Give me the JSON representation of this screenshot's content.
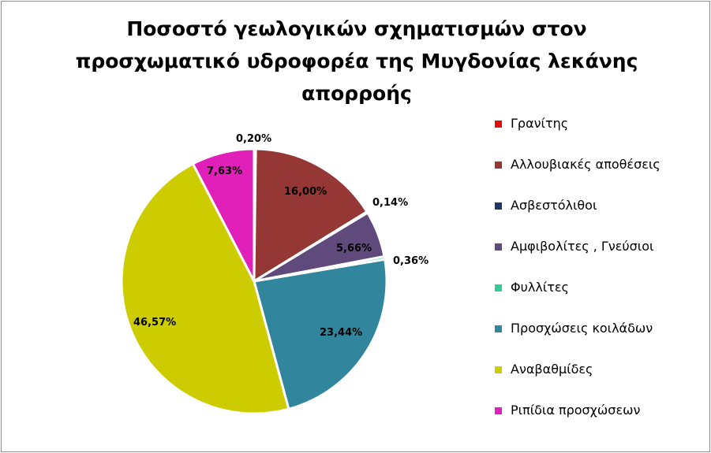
{
  "chart_data": {
    "type": "pie",
    "title": "Ποσοστό γεωλογικών σχηματισμών στον προσχωματικό υδροφορέα της Μυγδονίας λεκάνης απορροής",
    "title_lines": [
      "Ποσοστό γεωλογικών σχηματισμών στον",
      "προσχωματικό υδροφορέα της Μυγδονίας λεκάνης",
      "απορροής"
    ],
    "legend_position": "right",
    "slices": [
      {
        "name": "Γρανίτης",
        "value": 0.2,
        "label": "0,20%",
        "color": "#e01010"
      },
      {
        "name": "Αλλουβιακές αποθέσεις",
        "value": 16.0,
        "label": "16,00%",
        "color": "#953735"
      },
      {
        "name": "Ασβεστόλιθοι",
        "value": 0.14,
        "label": "0,14%",
        "color": "#1f3864"
      },
      {
        "name": "Αμφιβολίτες , Γνεύσιοι",
        "value": 5.66,
        "label": "5,66%",
        "color": "#604a7b"
      },
      {
        "name": "Φυλλίτες",
        "value": 0.36,
        "label": "0,36%",
        "color": "#33cc99"
      },
      {
        "name": "Προσχώσεις κοιλάδων",
        "value": 23.44,
        "label": "23,44%",
        "color": "#31859c"
      },
      {
        "name": "Αναβαθμίδες",
        "value": 46.57,
        "label": "46,57%",
        "color": "#cccc00"
      },
      {
        "name": "Ριπίδια προσχώσεων",
        "value": 7.63,
        "label": "7,63%",
        "color": "#e020b8"
      }
    ]
  }
}
